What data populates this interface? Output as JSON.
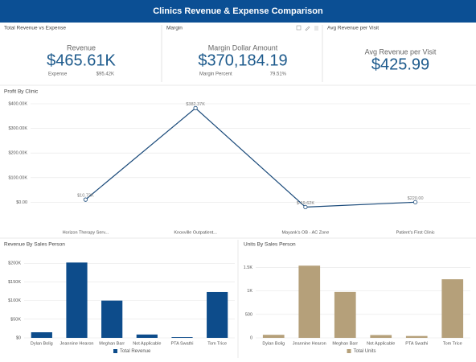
{
  "header": {
    "title": "Clinics Revenue & Expense Comparison"
  },
  "kpis": [
    {
      "panel": "Total Revenue vs Expense",
      "label": "Revenue",
      "value": "$465.61K",
      "sub_label": "Expense",
      "sub_value": "$95.42K"
    },
    {
      "panel": "Margin",
      "label": "Margin Dollar Amount",
      "value": "$370,184.19",
      "sub_label": "Margin Percent",
      "sub_value": "79.51%"
    },
    {
      "panel": "Avg Revenue per Visit",
      "label": "Avg Revenue per Visit",
      "value": "$425.99"
    }
  ],
  "chart_data": [
    {
      "type": "line",
      "title": "Profit By Clinic",
      "categories": [
        "Horizon Therapy Serv...",
        "Knoxville Outpatient...",
        "Mayank's OB - AC Zone",
        "Patient's First Clinic"
      ],
      "values": [
        10720,
        382370,
        -19620,
        220
      ],
      "value_labels": [
        "$10.72K",
        "$382.37K",
        "$-19.62K",
        "$220.00"
      ],
      "color": "#1a4a7a",
      "ylim": [
        -100000,
        400000
      ],
      "yticks": [
        {
          "value": 0,
          "label": "$0.00"
        },
        {
          "value": 100000,
          "label": "$100.00K"
        },
        {
          "value": 200000,
          "label": "$200.00K"
        },
        {
          "value": 300000,
          "label": "$300.00K"
        },
        {
          "value": 400000,
          "label": "$400.00K"
        }
      ],
      "grid": true
    },
    {
      "type": "bar",
      "title": "Revenue By Sales Person",
      "categories": [
        "Dylan Bolig",
        "Jeannine Hearon",
        "Meghan Barr",
        "Not Applicable",
        "PTA Swathi",
        "Tom Trice"
      ],
      "series": [
        {
          "name": "Total Revenue",
          "color": "#0d4c8b",
          "values": [
            15000,
            202000,
            100000,
            9000,
            2000,
            123000
          ]
        }
      ],
      "ylim": [
        0,
        220000
      ],
      "yticks": [
        {
          "value": 0,
          "label": "$0"
        },
        {
          "value": 50000,
          "label": "$50K"
        },
        {
          "value": 100000,
          "label": "$100K"
        },
        {
          "value": 150000,
          "label": "$150K"
        },
        {
          "value": 200000,
          "label": "$200K"
        }
      ],
      "grid": true
    },
    {
      "type": "bar",
      "title": "Units By Sales Person",
      "categories": [
        "Dylan Bolig",
        "Jeannine Hearon",
        "Meghan Barr",
        "Not Applicable",
        "PTA Swathi",
        "Tom Trice"
      ],
      "series": [
        {
          "name": "Total Units",
          "color": "#b5a07a",
          "values": [
            65,
            1540,
            980,
            60,
            40,
            1250
          ]
        }
      ],
      "ylim": [
        0,
        1750
      ],
      "yticks": [
        0,
        500,
        {
          "value": 1000,
          "label": "1K"
        },
        {
          "value": 1500,
          "label": "1.5K"
        }
      ],
      "grid": true
    }
  ]
}
